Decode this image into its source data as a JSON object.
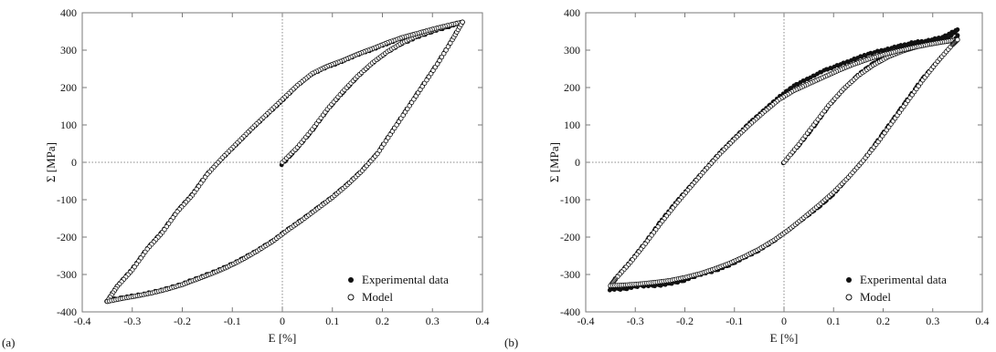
{
  "colors": {
    "axis": "#7a7a7a",
    "grid": "#8a8a8a",
    "marker": "#111111",
    "background": "#ffffff"
  },
  "chart_data": [
    {
      "type": "scatter",
      "panel_label": "(a)",
      "xlabel": "E [%]",
      "ylabel": "Σ [MPa]",
      "xlim": [
        -0.4,
        0.4
      ],
      "ylim": [
        -400,
        400
      ],
      "xticks": [
        -0.4,
        -0.3,
        -0.2,
        -0.1,
        0,
        0.1,
        0.2,
        0.3,
        0.4
      ],
      "yticks": [
        -400,
        -300,
        -200,
        -100,
        0,
        100,
        200,
        300,
        400
      ],
      "xtick_labels": [
        "-0.4",
        "-0.3",
        "-0.2",
        "-0.1",
        "0",
        "0.1",
        "0.2",
        "0.3",
        "0.4"
      ],
      "ytick_labels": [
        "-400",
        "-300",
        "-200",
        "-100",
        "0",
        "100",
        "200",
        "300",
        "400"
      ],
      "zero_lines": true,
      "legend_position": "bottom-right",
      "legend": [
        "Experimental data",
        "Model"
      ],
      "series": [
        {
          "name": "Experimental data",
          "marker": "filled-circle",
          "branches": [
            {
              "x": [
                0.0,
                0.03,
                0.06,
                0.09,
                0.12,
                0.15,
                0.18,
                0.21,
                0.24,
                0.27,
                0.3,
                0.33,
                0.36
              ],
              "y": [
                -5,
                38,
                85,
                140,
                185,
                228,
                265,
                295,
                318,
                335,
                350,
                362,
                375
              ]
            },
            {
              "x": [
                0.36,
                0.33,
                0.3,
                0.27,
                0.24,
                0.21,
                0.18,
                0.15,
                0.12,
                0.09,
                0.06,
                0.03,
                0.0,
                -0.03,
                -0.06,
                -0.09,
                -0.12,
                -0.15,
                -0.18,
                -0.21,
                -0.24,
                -0.27,
                -0.3,
                -0.33,
                -0.35
              ],
              "y": [
                375,
                365,
                355,
                343,
                333,
                318,
                302,
                288,
                270,
                255,
                237,
                205,
                165,
                128,
                90,
                50,
                10,
                -30,
                -85,
                -130,
                -185,
                -230,
                -285,
                -330,
                -370
              ]
            },
            {
              "x": [
                -0.35,
                -0.32,
                -0.29,
                -0.26,
                -0.23,
                -0.2,
                -0.17,
                -0.14,
                -0.11,
                -0.08,
                -0.05,
                -0.02,
                0.01,
                0.04,
                0.07,
                0.1,
                0.13,
                0.16,
                0.19,
                0.22,
                0.25,
                0.28,
                0.31,
                0.34,
                0.36
              ],
              "y": [
                -370,
                -362,
                -356,
                -348,
                -338,
                -325,
                -310,
                -295,
                -278,
                -258,
                -235,
                -210,
                -180,
                -152,
                -122,
                -92,
                -58,
                -20,
                25,
                85,
                145,
                205,
                265,
                330,
                375
              ]
            }
          ]
        },
        {
          "name": "Model",
          "marker": "open-circle",
          "branches": [
            {
              "x": [
                0.0,
                0.03,
                0.06,
                0.09,
                0.12,
                0.15,
                0.18,
                0.21,
                0.24,
                0.27,
                0.3,
                0.33,
                0.36
              ],
              "y": [
                0,
                40,
                88,
                142,
                188,
                230,
                266,
                296,
                320,
                338,
                352,
                364,
                375
              ]
            },
            {
              "x": [
                0.36,
                0.33,
                0.3,
                0.27,
                0.24,
                0.21,
                0.18,
                0.15,
                0.12,
                0.09,
                0.06,
                0.03,
                0.0,
                -0.03,
                -0.06,
                -0.09,
                -0.12,
                -0.15,
                -0.18,
                -0.21,
                -0.24,
                -0.27,
                -0.3,
                -0.33,
                -0.35
              ],
              "y": [
                375,
                366,
                356,
                345,
                334,
                320,
                304,
                289,
                272,
                257,
                238,
                206,
                168,
                130,
                92,
                52,
                12,
                -32,
                -88,
                -132,
                -188,
                -232,
                -288,
                -332,
                -372
              ]
            },
            {
              "x": [
                -0.35,
                -0.32,
                -0.29,
                -0.26,
                -0.23,
                -0.2,
                -0.17,
                -0.14,
                -0.11,
                -0.08,
                -0.05,
                -0.02,
                0.01,
                0.04,
                0.07,
                0.1,
                0.13,
                0.16,
                0.19,
                0.22,
                0.25,
                0.28,
                0.31,
                0.34,
                0.36
              ],
              "y": [
                -372,
                -364,
                -357,
                -349,
                -339,
                -327,
                -312,
                -297,
                -280,
                -260,
                -237,
                -212,
                -182,
                -154,
                -124,
                -94,
                -60,
                -22,
                23,
                83,
                143,
                203,
                263,
                328,
                375
              ]
            }
          ]
        }
      ]
    },
    {
      "type": "scatter",
      "panel_label": "(b)",
      "xlabel": "E [%]",
      "ylabel": "Σ [MPa]",
      "xlim": [
        -0.4,
        0.4
      ],
      "ylim": [
        -400,
        400
      ],
      "xticks": [
        -0.4,
        -0.3,
        -0.2,
        -0.1,
        0,
        0.1,
        0.2,
        0.3,
        0.4
      ],
      "yticks": [
        -400,
        -300,
        -200,
        -100,
        0,
        100,
        200,
        300,
        400
      ],
      "xtick_labels": [
        "-0.4",
        "-0.3",
        "-0.2",
        "-0.1",
        "0",
        "0.1",
        "0.2",
        "0.3",
        "0.4"
      ],
      "ytick_labels": [
        "-400",
        "-300",
        "-200",
        "-100",
        "0",
        "100",
        "200",
        "300",
        "400"
      ],
      "zero_lines": true,
      "legend_position": "bottom-right",
      "legend": [
        "Experimental data",
        "Model"
      ],
      "series": [
        {
          "name": "Experimental data",
          "marker": "filled-circle",
          "branches": [
            {
              "x": [
                0.0,
                0.03,
                0.06,
                0.09,
                0.12,
                0.15,
                0.18,
                0.21,
                0.24,
                0.27,
                0.3,
                0.33,
                0.35
              ],
              "y": [
                0,
                45,
                95,
                150,
                195,
                235,
                265,
                290,
                305,
                315,
                320,
                330,
                355
              ]
            },
            {
              "x": [
                0.35,
                0.32,
                0.29,
                0.26,
                0.23,
                0.2,
                0.17,
                0.14,
                0.11,
                0.08,
                0.05,
                0.02,
                -0.01,
                -0.04,
                -0.07,
                -0.1,
                -0.13,
                -0.16,
                -0.19,
                -0.22,
                -0.25,
                -0.28,
                -0.31,
                -0.34,
                -0.35
              ],
              "y": [
                355,
                335,
                325,
                320,
                310,
                300,
                290,
                275,
                260,
                245,
                225,
                205,
                175,
                140,
                105,
                65,
                25,
                -20,
                -65,
                -110,
                -160,
                -215,
                -265,
                -310,
                -335
              ]
            },
            {
              "x": [
                -0.35,
                -0.32,
                -0.29,
                -0.26,
                -0.23,
                -0.2,
                -0.17,
                -0.14,
                -0.11,
                -0.08,
                -0.05,
                -0.02,
                0.01,
                0.04,
                0.07,
                0.1,
                0.13,
                0.16,
                0.19,
                0.22,
                0.25,
                0.28,
                0.31,
                0.34,
                0.35
              ],
              "y": [
                -340,
                -338,
                -330,
                -330,
                -325,
                -315,
                -300,
                -290,
                -275,
                -255,
                -235,
                -210,
                -180,
                -150,
                -120,
                -85,
                -40,
                5,
                60,
                115,
                170,
                225,
                270,
                315,
                340
              ]
            }
          ]
        },
        {
          "name": "Model",
          "marker": "open-circle",
          "branches": [
            {
              "x": [
                0.0,
                0.03,
                0.06,
                0.09,
                0.12,
                0.15,
                0.18,
                0.21,
                0.24,
                0.27,
                0.3,
                0.33,
                0.35
              ],
              "y": [
                0,
                48,
                100,
                152,
                196,
                232,
                260,
                282,
                298,
                310,
                318,
                324,
                328
              ]
            },
            {
              "x": [
                0.35,
                0.32,
                0.29,
                0.26,
                0.23,
                0.2,
                0.17,
                0.14,
                0.11,
                0.08,
                0.05,
                0.02,
                -0.01,
                -0.04,
                -0.07,
                -0.1,
                -0.13,
                -0.16,
                -0.19,
                -0.22,
                -0.25,
                -0.28,
                -0.31,
                -0.34,
                -0.35
              ],
              "y": [
                328,
                322,
                315,
                307,
                298,
                288,
                276,
                262,
                246,
                228,
                210,
                192,
                168,
                135,
                100,
                62,
                22,
                -22,
                -68,
                -115,
                -165,
                -218,
                -268,
                -312,
                -330
              ]
            },
            {
              "x": [
                -0.35,
                -0.32,
                -0.29,
                -0.26,
                -0.23,
                -0.2,
                -0.17,
                -0.14,
                -0.11,
                -0.08,
                -0.05,
                -0.02,
                0.01,
                0.04,
                0.07,
                0.1,
                0.13,
                0.16,
                0.19,
                0.22,
                0.25,
                0.28,
                0.31,
                0.34,
                0.35
              ],
              "y": [
                -330,
                -328,
                -325,
                -321,
                -316,
                -308,
                -298,
                -285,
                -270,
                -252,
                -232,
                -208,
                -180,
                -148,
                -115,
                -80,
                -40,
                5,
                55,
                110,
                165,
                220,
                270,
                315,
                328
              ]
            }
          ]
        }
      ]
    }
  ]
}
